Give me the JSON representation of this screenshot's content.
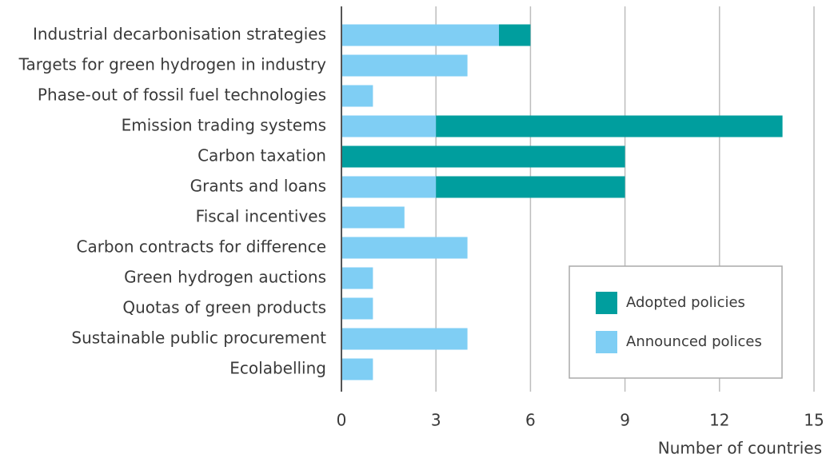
{
  "chart_data": {
    "type": "stacked-barh",
    "categories": [
      "Industrial decarbonisation strategies",
      "Targets for green hydrogen in industry",
      "Phase-out of fossil fuel technologies",
      "Emission trading systems",
      "Carbon taxation",
      "Grants and loans",
      "Fiscal incentives",
      "Carbon contracts for difference",
      "Green hydrogen auctions",
      "Quotas of green products",
      "Sustainable public procurement",
      "Ecolabelling"
    ],
    "series": [
      {
        "name": "Announced polices",
        "color": "#7fcef4",
        "values": [
          5,
          4,
          1,
          3,
          0,
          3,
          2,
          4,
          1,
          1,
          4,
          1
        ]
      },
      {
        "name": "Adopted policies",
        "color": "#009e9e",
        "values": [
          1,
          0,
          0,
          11,
          9,
          6,
          0,
          0,
          0,
          0,
          0,
          0
        ]
      }
    ],
    "xlim": [
      0,
      15
    ],
    "xticks": [
      0,
      3,
      6,
      9,
      12,
      15
    ],
    "grid": true,
    "xlabel": "Number of countries",
    "legend": "lower right"
  }
}
